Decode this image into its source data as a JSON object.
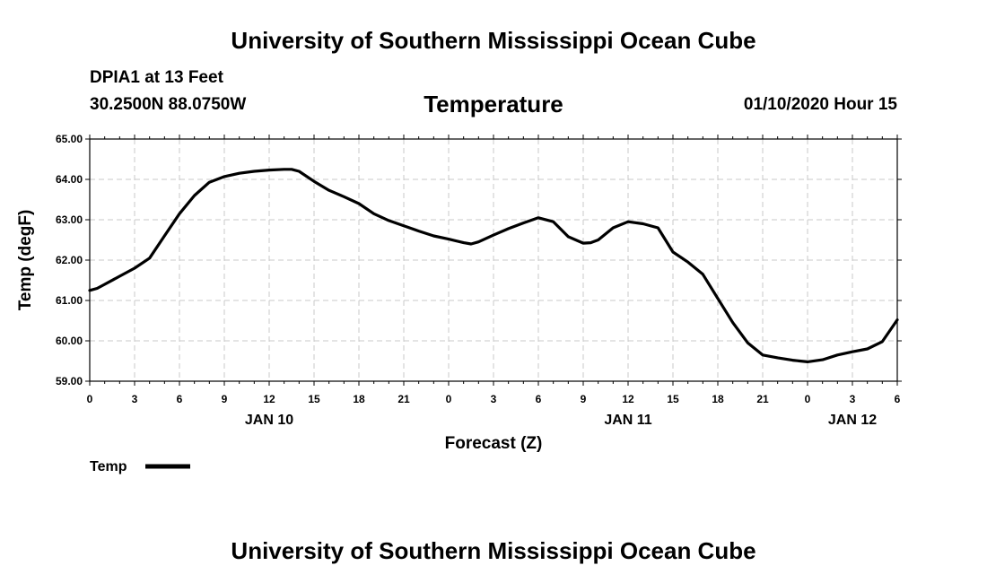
{
  "header": {
    "organization": "University of Southern Mississippi Ocean Cube",
    "station": "DPIA1 at 13 Feet",
    "coordinates": "30.2500N 88.0750W",
    "datetime": "01/10/2020 Hour 15"
  },
  "footer": {
    "organization": "University of Southern Mississippi Ocean Cube"
  },
  "chart_data": {
    "type": "line",
    "title": "Temperature",
    "xlabel": "Forecast (Z)",
    "ylabel": "Temp (degF)",
    "xlim": [
      0,
      54
    ],
    "ylim": [
      59.0,
      65.0
    ],
    "grid": true,
    "yticks": [
      "59.00",
      "60.00",
      "61.00",
      "62.00",
      "63.00",
      "64.00",
      "65.00"
    ],
    "xtick_labels": [
      "0",
      "3",
      "6",
      "9",
      "12",
      "15",
      "18",
      "21",
      "0",
      "3",
      "6",
      "9",
      "12",
      "15",
      "18",
      "21",
      "0",
      "3",
      "6"
    ],
    "date_labels": [
      {
        "label": "JAN 10",
        "x": 12
      },
      {
        "label": "JAN 11",
        "x": 36
      },
      {
        "label": "JAN 12",
        "x": 51
      }
    ],
    "legend": {
      "label": "Temp",
      "position": "bottom-left"
    },
    "line_color": "#000000",
    "series": [
      {
        "name": "Temp",
        "x": [
          0,
          0.5,
          1,
          2,
          3,
          4,
          5,
          6,
          7,
          8,
          9,
          10,
          11,
          12,
          13,
          13.5,
          14,
          15,
          16,
          17,
          18,
          19,
          20,
          21,
          22,
          23,
          24,
          25,
          25.5,
          26,
          27,
          28,
          29,
          30,
          31,
          32,
          33,
          33.5,
          34,
          35,
          36,
          37,
          38,
          39,
          40,
          41,
          42,
          43,
          44,
          45,
          46,
          47,
          48,
          49,
          50,
          51,
          52,
          53,
          54
        ],
        "values": [
          61.25,
          61.3,
          61.4,
          61.6,
          61.8,
          62.05,
          62.6,
          63.15,
          63.6,
          63.93,
          64.07,
          64.15,
          64.2,
          64.23,
          64.25,
          64.25,
          64.2,
          63.95,
          63.73,
          63.57,
          63.4,
          63.15,
          62.98,
          62.85,
          62.72,
          62.6,
          62.52,
          62.43,
          62.4,
          62.45,
          62.62,
          62.78,
          62.92,
          63.05,
          62.95,
          62.58,
          62.42,
          62.43,
          62.5,
          62.8,
          62.95,
          62.9,
          62.8,
          62.2,
          61.95,
          61.65,
          61.05,
          60.45,
          59.95,
          59.65,
          59.58,
          59.52,
          59.48,
          59.53,
          59.65,
          59.73,
          59.8,
          59.98,
          60.52
        ]
      }
    ]
  }
}
